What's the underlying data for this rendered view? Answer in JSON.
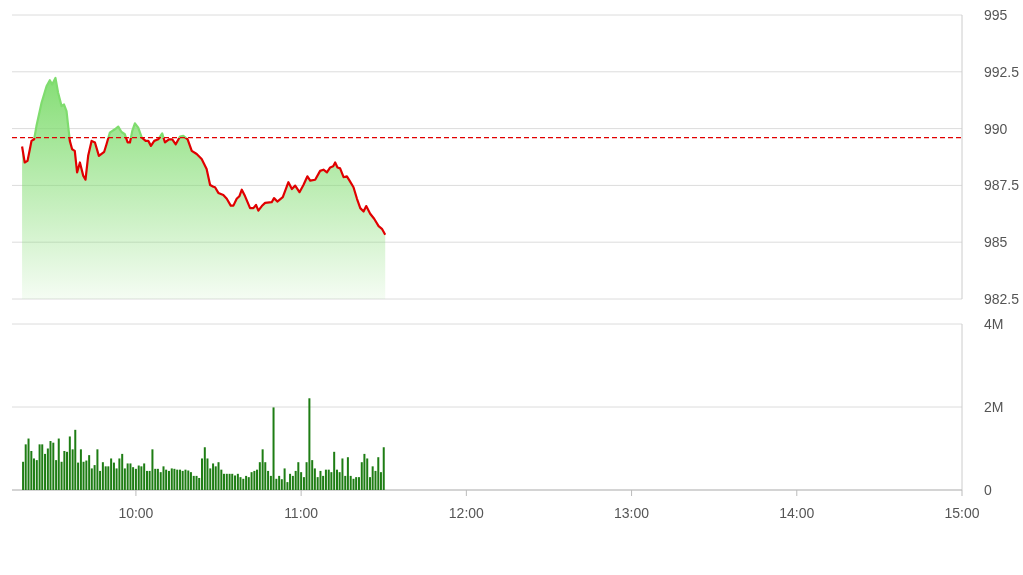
{
  "chart_data": [
    {
      "type": "area",
      "xlim": [
        9.25,
        15
      ],
      "ylim": [
        982.5,
        995
      ],
      "yticks": [
        995,
        992.5,
        990,
        987.5,
        985,
        982.5
      ],
      "tick_labels": "y",
      "grid": "y",
      "x": [
        9.311,
        9.327,
        9.344,
        9.358,
        9.368,
        9.384,
        9.398,
        9.429,
        9.459,
        9.479,
        9.493,
        9.513,
        9.529,
        9.55,
        9.565,
        9.58,
        9.59,
        9.6,
        9.614,
        9.63,
        9.644,
        9.661,
        9.681,
        9.695,
        9.711,
        9.732,
        9.752,
        9.776,
        9.808,
        9.822,
        9.842,
        9.873,
        9.893,
        9.913,
        9.933,
        9.95,
        9.964,
        9.978,
        9.994,
        10.014,
        10.035,
        10.059,
        10.075,
        10.091,
        10.111,
        10.135,
        10.159,
        10.176,
        10.2,
        10.22,
        10.241,
        10.267,
        10.287,
        10.313,
        10.338,
        10.368,
        10.398,
        10.428,
        10.449,
        10.469,
        10.479,
        10.499,
        10.529,
        10.55,
        10.574,
        10.59,
        10.61,
        10.626,
        10.641,
        10.661,
        10.691,
        10.711,
        10.727,
        10.741,
        10.762,
        10.782,
        10.822,
        10.836,
        10.856,
        10.889,
        10.923,
        10.944,
        10.964,
        10.99,
        11.014,
        11.038,
        11.055,
        11.085,
        11.115,
        11.135,
        11.156,
        11.176,
        11.194,
        11.206,
        11.22,
        11.236,
        11.257,
        11.277,
        11.293,
        11.317,
        11.338,
        11.358,
        11.378,
        11.394,
        11.418,
        11.442,
        11.469,
        11.489,
        11.509
      ],
      "series": [
        {
          "color": "#7fdc6e",
          "values": [
            989.21,
            988.51,
            988.58,
            989.09,
            989.46,
            989.53,
            990.11,
            991.14,
            991.86,
            992.13,
            991.94,
            992.23,
            991.58,
            990.99,
            991.06,
            990.77,
            990.11,
            989.46,
            989.09,
            989.02,
            988.07,
            988.51,
            987.93,
            987.75,
            988.8,
            989.46,
            989.39,
            988.8,
            988.98,
            989.31,
            989.82,
            989.97,
            990.09,
            989.85,
            989.75,
            989.39,
            989.39,
            989.9,
            990.23,
            990.04,
            989.61,
            989.46,
            989.46,
            989.24,
            989.46,
            989.53,
            989.79,
            989.39,
            989.53,
            989.53,
            989.31,
            989.65,
            989.68,
            989.53,
            989.02,
            988.88,
            988.66,
            988.22,
            987.52,
            987.44,
            987.42,
            987.17,
            987.08,
            986.91,
            986.61,
            986.61,
            986.91,
            987.02,
            987.31,
            987.02,
            986.5,
            986.5,
            986.64,
            986.39,
            986.59,
            986.73,
            986.76,
            986.94,
            986.79,
            986.98,
            987.64,
            987.34,
            987.49,
            987.2,
            987.52,
            987.9,
            987.71,
            987.75,
            988.14,
            988.19,
            988.07,
            988.29,
            988.34,
            988.51,
            988.29,
            988.25,
            987.86,
            987.9,
            987.71,
            987.42,
            986.91,
            986.5,
            986.35,
            986.59,
            986.25,
            986.03,
            985.71,
            985.59,
            985.33
          ]
        }
      ],
      "ref_lines": [
        {
          "axis": "y",
          "value": 989.6,
          "color": "#e00000",
          "line_style": "dashed"
        }
      ]
    },
    {
      "type": "bar",
      "xlim": [
        9.25,
        15
      ],
      "xticks": [
        {
          "value": 10,
          "label": "10:00"
        },
        {
          "value": 11,
          "label": "11:00"
        },
        {
          "value": 12,
          "label": "12:00"
        },
        {
          "value": 13,
          "label": "13:00"
        },
        {
          "value": 14,
          "label": "14:00"
        },
        {
          "value": 15,
          "label": "15:00"
        }
      ],
      "ylim": [
        0,
        4
      ],
      "yticks": [
        {
          "value": 4,
          "label": "4M"
        },
        {
          "value": 2,
          "label": "2M"
        },
        {
          "value": 0,
          "label": "0"
        }
      ],
      "grid": "y",
      "x": [
        9.317,
        9.333,
        9.35,
        9.367,
        9.383,
        9.4,
        9.417,
        9.433,
        9.45,
        9.467,
        9.483,
        9.5,
        9.517,
        9.533,
        9.55,
        9.567,
        9.583,
        9.6,
        9.617,
        9.633,
        9.65,
        9.667,
        9.683,
        9.7,
        9.717,
        9.733,
        9.75,
        9.767,
        9.783,
        9.8,
        9.817,
        9.833,
        9.85,
        9.867,
        9.883,
        9.9,
        9.917,
        9.933,
        9.95,
        9.967,
        9.983,
        10,
        10.017,
        10.033,
        10.05,
        10.067,
        10.083,
        10.1,
        10.117,
        10.133,
        10.15,
        10.167,
        10.183,
        10.2,
        10.217,
        10.233,
        10.25,
        10.267,
        10.283,
        10.3,
        10.317,
        10.333,
        10.35,
        10.367,
        10.383,
        10.4,
        10.417,
        10.433,
        10.45,
        10.467,
        10.483,
        10.5,
        10.517,
        10.533,
        10.55,
        10.567,
        10.583,
        10.6,
        10.617,
        10.633,
        10.65,
        10.667,
        10.683,
        10.7,
        10.717,
        10.733,
        10.75,
        10.767,
        10.783,
        10.8,
        10.817,
        10.833,
        10.85,
        10.867,
        10.883,
        10.9,
        10.917,
        10.933,
        10.95,
        10.967,
        10.983,
        11,
        11.017,
        11.033,
        11.05,
        11.067,
        11.083,
        11.1,
        11.117,
        11.133,
        11.15,
        11.167,
        11.183,
        11.2,
        11.217,
        11.233,
        11.25,
        11.267,
        11.283,
        11.3,
        11.317,
        11.333,
        11.35,
        11.367,
        11.383,
        11.4,
        11.417,
        11.433,
        11.45,
        11.467,
        11.483,
        11.5
      ],
      "series": [
        {
          "color": "#1e7d14",
          "values": [
            0.68,
            1.1,
            1.24,
            0.94,
            0.76,
            0.72,
            1.1,
            1.1,
            0.87,
            1.0,
            1.18,
            1.14,
            0.72,
            1.24,
            0.68,
            0.94,
            0.92,
            1.29,
            0.98,
            1.45,
            0.66,
            0.98,
            0.68,
            0.71,
            0.84,
            0.52,
            0.6,
            0.98,
            0.46,
            0.67,
            0.57,
            0.57,
            0.76,
            0.66,
            0.52,
            0.76,
            0.87,
            0.52,
            0.64,
            0.64,
            0.55,
            0.51,
            0.59,
            0.57,
            0.64,
            0.46,
            0.46,
            0.98,
            0.51,
            0.51,
            0.43,
            0.57,
            0.49,
            0.46,
            0.52,
            0.51,
            0.49,
            0.49,
            0.46,
            0.49,
            0.47,
            0.43,
            0.34,
            0.34,
            0.29,
            0.76,
            1.03,
            0.76,
            0.52,
            0.64,
            0.57,
            0.67,
            0.49,
            0.39,
            0.39,
            0.39,
            0.39,
            0.35,
            0.39,
            0.31,
            0.27,
            0.34,
            0.31,
            0.43,
            0.46,
            0.49,
            0.67,
            0.98,
            0.67,
            0.46,
            0.34,
            1.99,
            0.27,
            0.34,
            0.26,
            0.52,
            0.19,
            0.39,
            0.34,
            0.46,
            0.67,
            0.43,
            0.31,
            0.67,
            2.21,
            0.72,
            0.52,
            0.31,
            0.46,
            0.34,
            0.49,
            0.49,
            0.43,
            0.92,
            0.49,
            0.43,
            0.76,
            0.34,
            0.79,
            0.34,
            0.27,
            0.31,
            0.31,
            0.67,
            0.87,
            0.76,
            0.31,
            0.57,
            0.46,
            0.79,
            0.43,
            1.03
          ]
        }
      ]
    }
  ]
}
